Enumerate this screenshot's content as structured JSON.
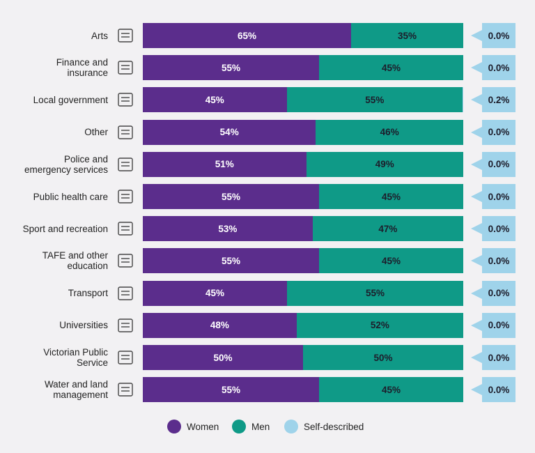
{
  "chart_data": {
    "type": "bar",
    "orientation": "horizontal",
    "stacked": true,
    "xlim": [
      0,
      100
    ],
    "categories": [
      "Arts",
      "Finance and insurance",
      "Local government",
      "Other",
      "Police and emergency services",
      "Public health care",
      "Sport and recreation",
      "TAFE and other education",
      "Transport",
      "Universities",
      "Victorian Public Service",
      "Water and land management"
    ],
    "category_lines": [
      [
        "Arts"
      ],
      [
        "Finance and",
        "insurance"
      ],
      [
        "Local government"
      ],
      [
        "Other"
      ],
      [
        "Police and",
        "emergency services"
      ],
      [
        "Public health care"
      ],
      [
        "Sport and recreation"
      ],
      [
        "TAFE and other",
        "education"
      ],
      [
        "Transport"
      ],
      [
        "Universities"
      ],
      [
        "Victorian Public",
        "Service"
      ],
      [
        "Water and land",
        "management"
      ]
    ],
    "icons": [
      "pens-icon",
      "money-bag-icon",
      "government-building-icon",
      "grid-icon",
      "siren-icon",
      "medical-clipboard-icon",
      "sport-equipment-icon",
      "book-icon",
      "truck-icon",
      "graduation-cap-icon",
      "school-building-icon",
      "plant-water-icon"
    ],
    "series": [
      {
        "name": "Women",
        "color": "#5b2d8c",
        "values": [
          65,
          55,
          45,
          54,
          51,
          55,
          53,
          55,
          45,
          48,
          50,
          55
        ],
        "labels": [
          "65%",
          "55%",
          "45%",
          "54%",
          "51%",
          "55%",
          "53%",
          "55%",
          "45%",
          "48%",
          "50%",
          "55%"
        ]
      },
      {
        "name": "Men",
        "color": "#0f9a87",
        "values": [
          35,
          45,
          55,
          46,
          49,
          45,
          47,
          45,
          55,
          52,
          50,
          45
        ],
        "labels": [
          "35%",
          "45%",
          "55%",
          "46%",
          "49%",
          "45%",
          "47%",
          "45%",
          "55%",
          "52%",
          "50%",
          "45%"
        ]
      },
      {
        "name": "Self-described",
        "color": "#9fd3ea",
        "values": [
          0.0,
          0.0,
          0.2,
          0.0,
          0.0,
          0.0,
          0.0,
          0.0,
          0.0,
          0.0,
          0.0,
          0.0
        ],
        "labels": [
          "0.0%",
          "0.0%",
          "0.2%",
          "0.0%",
          "0.0%",
          "0.0%",
          "0.0%",
          "0.0%",
          "0.0%",
          "0.0%",
          "0.0%",
          "0.0%"
        ]
      }
    ],
    "legend_position": "bottom",
    "grid": false
  }
}
